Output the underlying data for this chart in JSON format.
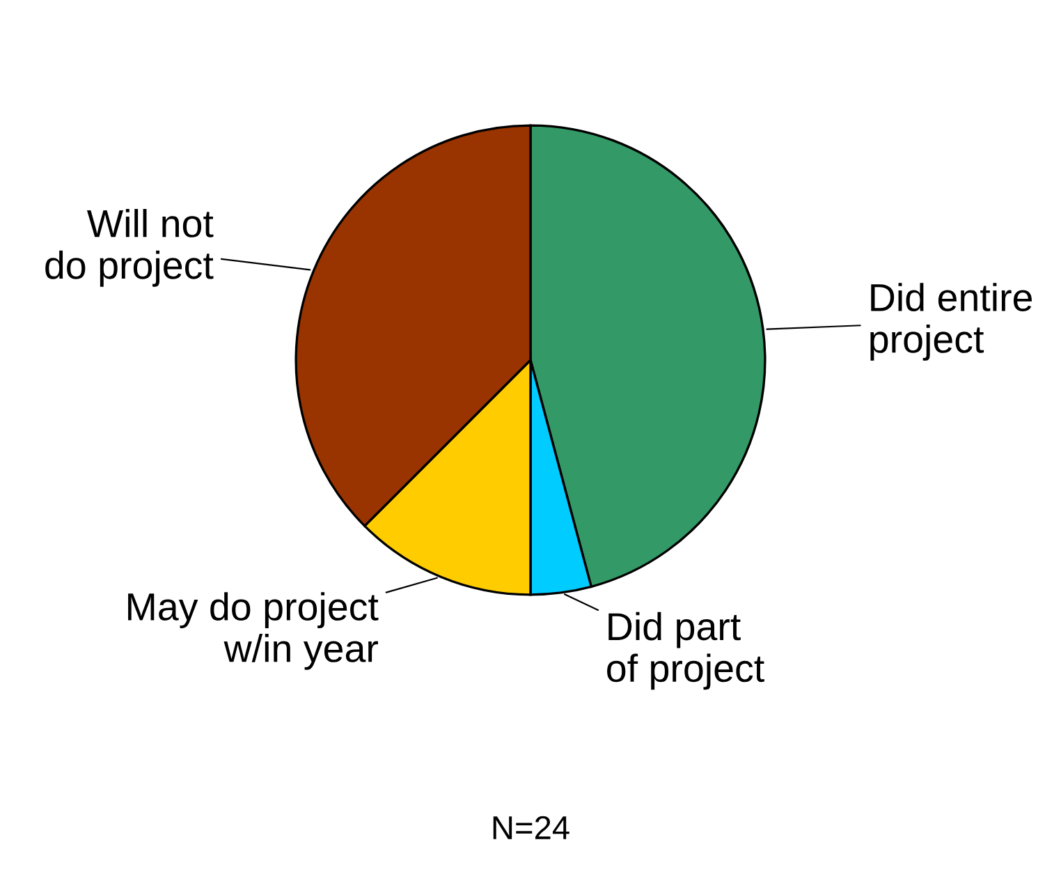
{
  "chart_data": {
    "type": "pie",
    "categories": [
      "Did entire project",
      "Did part of project",
      "May do project w/in year",
      "Will not do project"
    ],
    "values": [
      45.83,
      4.17,
      12.5,
      37.5
    ],
    "colors": [
      "#339966",
      "#00ccff",
      "#ffcc00",
      "#993300"
    ],
    "annotations": [
      "N=24"
    ],
    "legend": false
  }
}
